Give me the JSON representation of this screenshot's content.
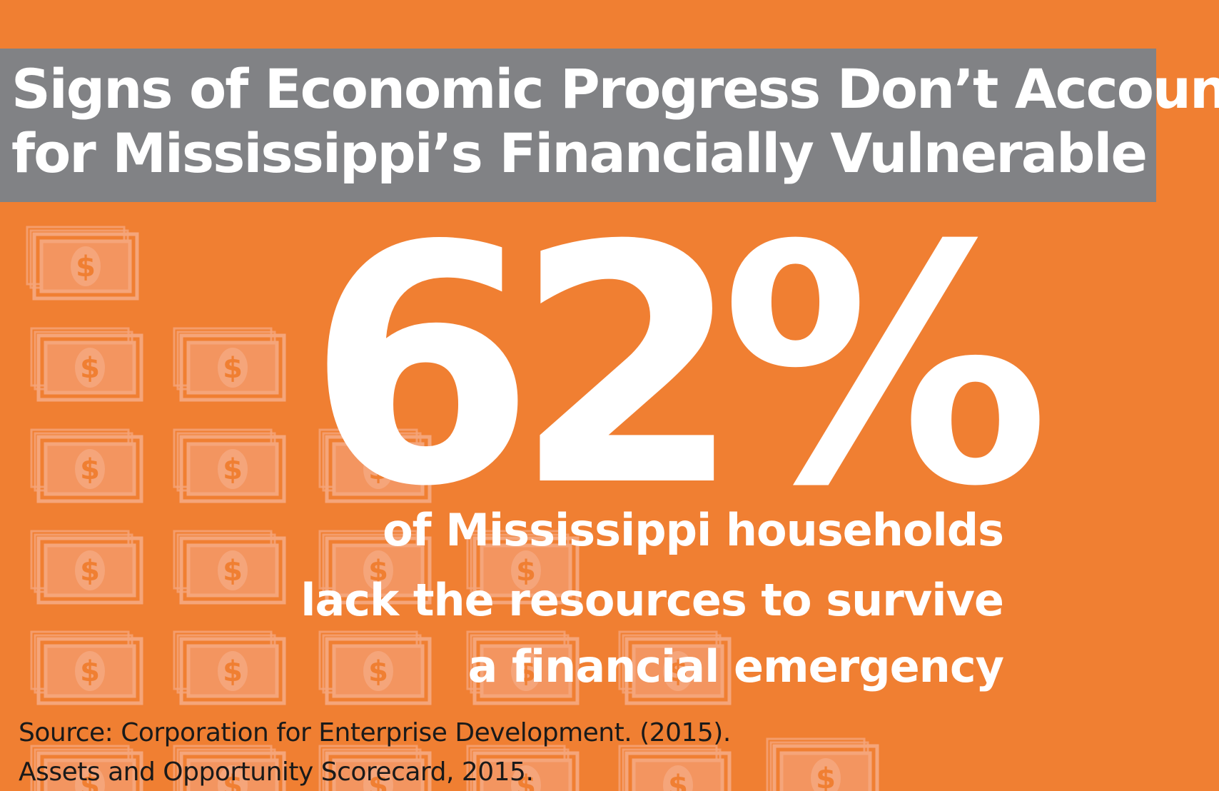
{
  "colors": {
    "background": "#F07F32",
    "title_bar": "#818285",
    "text_light": "#FFFFFF",
    "text_dark": "#1A1A1A",
    "bill_icon": "#F5A57A"
  },
  "title": {
    "line1": "Signs of Economic Progress Don’t Account",
    "line2": "for Mississippi’s Financially Vulnerable"
  },
  "stat": {
    "value": "62%",
    "desc_line1": "of Mississippi households",
    "desc_line2": "lack the resources to survive",
    "desc_line3": "a financial emergency"
  },
  "source": {
    "line1": "Source: Corporation for Enterprise Development. (2015).",
    "line2": "Assets and Opportunity Scorecard, 2015."
  },
  "decor": {
    "icon": "money-stack-icon",
    "symbol": "$"
  }
}
